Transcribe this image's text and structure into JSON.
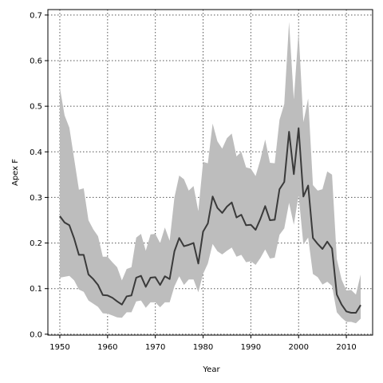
{
  "chart_data": {
    "type": "line",
    "title": "",
    "xlabel": "Year",
    "ylabel": "Apex F",
    "xlim": [
      1947.5,
      2015.5
    ],
    "ylim": [
      -0.002,
      0.712
    ],
    "xticks": [
      1950,
      1960,
      1970,
      1980,
      1990,
      2000,
      2010
    ],
    "xtick_labels": [
      "1950",
      "1960",
      "1970",
      "1980",
      "1990",
      "2000",
      "2010"
    ],
    "yticks": [
      0.0,
      0.1,
      0.2,
      0.3,
      0.4,
      0.5,
      0.6,
      0.7
    ],
    "ytick_labels": [
      "0.0",
      "0.1",
      "0.2",
      "0.3",
      "0.4",
      "0.5",
      "0.6",
      "0.7"
    ],
    "grid": true,
    "x": [
      1950,
      1951,
      1952,
      1953,
      1954,
      1955,
      1956,
      1957,
      1958,
      1959,
      1960,
      1961,
      1962,
      1963,
      1964,
      1965,
      1966,
      1967,
      1968,
      1969,
      1970,
      1971,
      1972,
      1973,
      1974,
      1975,
      1976,
      1977,
      1978,
      1979,
      1980,
      1981,
      1982,
      1983,
      1984,
      1985,
      1986,
      1987,
      1988,
      1989,
      1990,
      1991,
      1992,
      1993,
      1994,
      1995,
      1996,
      1997,
      1998,
      1999,
      2000,
      2001,
      2002,
      2003,
      2004,
      2005,
      2006,
      2007,
      2008,
      2009,
      2010,
      2011,
      2012,
      2013
    ],
    "series": [
      {
        "role": "mean",
        "values": [
          0.259,
          0.245,
          0.239,
          0.21,
          0.174,
          0.174,
          0.131,
          0.121,
          0.108,
          0.086,
          0.085,
          0.08,
          0.072,
          0.065,
          0.083,
          0.085,
          0.124,
          0.128,
          0.104,
          0.124,
          0.125,
          0.108,
          0.127,
          0.121,
          0.182,
          0.211,
          0.193,
          0.196,
          0.2,
          0.155,
          0.225,
          0.243,
          0.302,
          0.277,
          0.266,
          0.28,
          0.289,
          0.256,
          0.262,
          0.239,
          0.24,
          0.229,
          0.253,
          0.281,
          0.25,
          0.251,
          0.318,
          0.334,
          0.444,
          0.351,
          0.452,
          0.302,
          0.326,
          0.211,
          0.198,
          0.187,
          0.203,
          0.188,
          0.087,
          0.065,
          0.05,
          0.047,
          0.047,
          0.064
        ]
      },
      {
        "role": "band-upper",
        "values": [
          0.541,
          0.48,
          0.453,
          0.385,
          0.317,
          0.32,
          0.25,
          0.23,
          0.215,
          0.17,
          0.17,
          0.158,
          0.147,
          0.118,
          0.143,
          0.147,
          0.212,
          0.22,
          0.183,
          0.219,
          0.22,
          0.2,
          0.234,
          0.205,
          0.3,
          0.348,
          0.34,
          0.315,
          0.325,
          0.27,
          0.378,
          0.375,
          0.462,
          0.423,
          0.407,
          0.43,
          0.44,
          0.39,
          0.4,
          0.366,
          0.363,
          0.347,
          0.383,
          0.427,
          0.376,
          0.375,
          0.47,
          0.505,
          0.685,
          0.515,
          0.665,
          0.465,
          0.517,
          0.327,
          0.315,
          0.318,
          0.357,
          0.35,
          0.165,
          0.12,
          0.096,
          0.097,
          0.087,
          0.131
        ]
      },
      {
        "role": "band-lower",
        "values": [
          0.124,
          0.126,
          0.128,
          0.118,
          0.098,
          0.093,
          0.074,
          0.067,
          0.06,
          0.046,
          0.045,
          0.041,
          0.037,
          0.036,
          0.048,
          0.048,
          0.072,
          0.074,
          0.058,
          0.07,
          0.07,
          0.059,
          0.07,
          0.07,
          0.105,
          0.127,
          0.108,
          0.12,
          0.12,
          0.092,
          0.132,
          0.155,
          0.198,
          0.182,
          0.175,
          0.183,
          0.19,
          0.17,
          0.174,
          0.158,
          0.16,
          0.152,
          0.167,
          0.186,
          0.166,
          0.168,
          0.218,
          0.232,
          0.288,
          0.24,
          0.305,
          0.197,
          0.212,
          0.132,
          0.125,
          0.109,
          0.115,
          0.106,
          0.048,
          0.036,
          0.027,
          0.027,
          0.024,
          0.034
        ]
      }
    ]
  }
}
